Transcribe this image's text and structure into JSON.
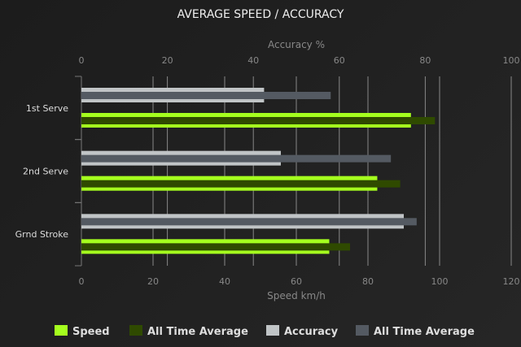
{
  "chart_data": {
    "type": "bar",
    "orientation": "horizontal",
    "title": "AVERAGE SPEED / ACCURACY",
    "categories": [
      "1st Serve",
      "2nd Serve",
      "Grnd Stroke"
    ],
    "top_axis": {
      "label": "Accuracy %",
      "range": [
        0,
        100
      ],
      "ticks": [
        "0",
        "20",
        "40",
        "60",
        "80",
        "100"
      ]
    },
    "bottom_axis": {
      "label": "Speed km/h",
      "range": [
        0,
        120
      ],
      "ticks": [
        "0",
        "20",
        "40",
        "60",
        "80",
        "100",
        "120"
      ]
    },
    "grid": true,
    "legend_placement": "bottom",
    "series": [
      {
        "name": "Speed",
        "axis": "bottom",
        "color": "#a5ff1e",
        "values": [
          92,
          82.6,
          69.2
        ]
      },
      {
        "name": "All Time Average",
        "axis": "bottom",
        "color": "#2f4a00",
        "values": [
          98.7,
          89,
          75
        ]
      },
      {
        "name": "Accuracy",
        "axis": "top",
        "color": "#c0c4c6",
        "values": [
          42.5,
          46.4,
          75
        ]
      },
      {
        "name": "All Time Average",
        "axis": "top",
        "color": "#545a62",
        "values": [
          58,
          72,
          78
        ]
      }
    ]
  }
}
